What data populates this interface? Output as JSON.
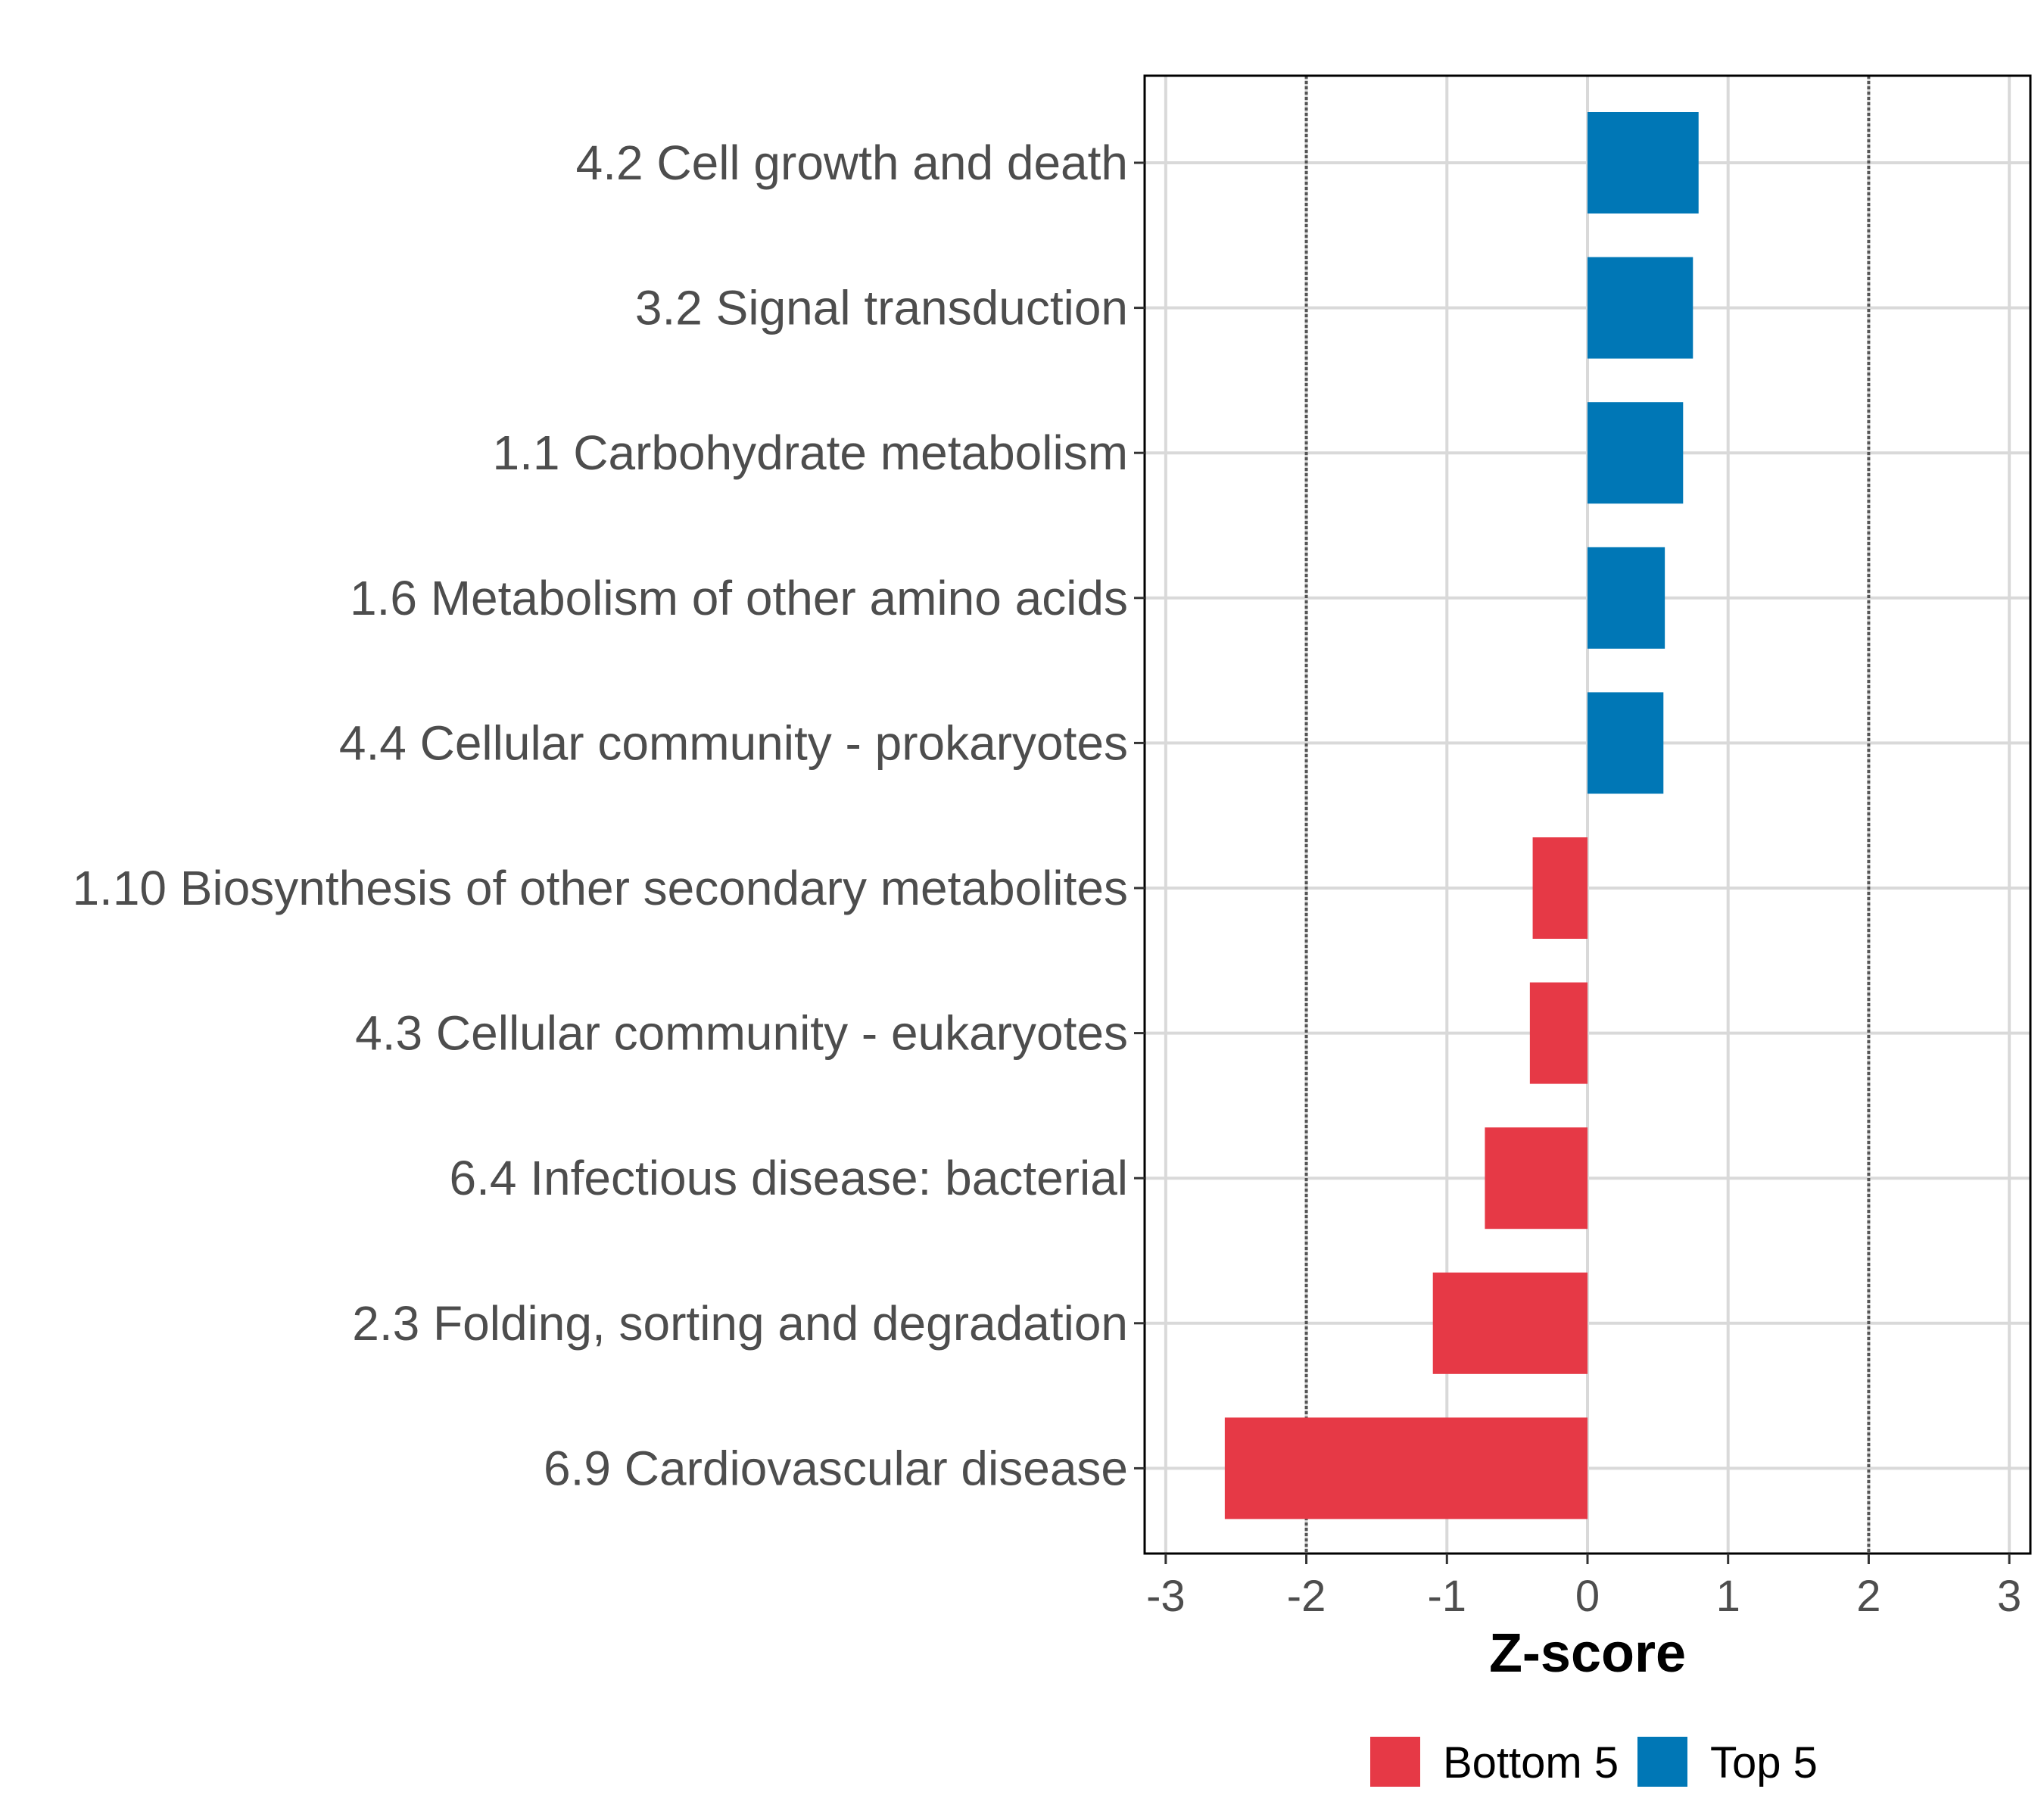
{
  "chart_data": {
    "type": "bar",
    "orientation": "horizontal",
    "title": "",
    "xlabel": "Z-score",
    "ylabel": "",
    "xlim": [
      -3.15,
      3.15
    ],
    "x_ticks": [
      -3,
      -2,
      -1,
      0,
      1,
      2,
      3
    ],
    "x_tick_labels": [
      "-3",
      "-2",
      "-1",
      "0",
      "1",
      "2",
      "3"
    ],
    "reference_lines": [
      -2,
      2
    ],
    "grid": true,
    "legend_position": "bottom",
    "categories": [
      "4.2 Cell growth and death",
      "3.2 Signal transduction",
      "1.1 Carbohydrate metabolism",
      "1.6 Metabolism of other amino acids",
      "4.4 Cellular community - prokaryotes",
      "1.10 Biosynthesis of other secondary metabolites",
      "4.3 Cellular community - eukaryotes",
      "6.4 Infectious disease: bacterial",
      "2.3 Folding, sorting and degradation",
      "6.9 Cardiovascular disease"
    ],
    "values": [
      0.79,
      0.75,
      0.68,
      0.55,
      0.54,
      -0.39,
      -0.41,
      -0.73,
      -1.1,
      -2.58
    ],
    "groups": [
      "Top 5",
      "Top 5",
      "Top 5",
      "Top 5",
      "Top 5",
      "Bottom 5",
      "Bottom 5",
      "Bottom 5",
      "Bottom 5",
      "Bottom 5"
    ],
    "legend": [
      {
        "name": "Bottom 5",
        "color": "#e63946"
      },
      {
        "name": "Top 5",
        "color": "#0077b6"
      }
    ]
  }
}
